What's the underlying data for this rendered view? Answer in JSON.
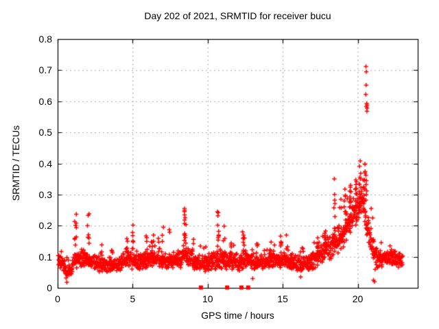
{
  "figure": {
    "title": "Day 202 of 2021, SRMTID for receiver bucu",
    "xlabel": "GPS time / hours",
    "ylabel": "SRMTID / TECUs",
    "background_color": "#ffffff",
    "marker_color": "#ff0000",
    "border_color": "#000000",
    "grid_color": "#a6a6a6",
    "text_color": "#000000"
  },
  "chart_data": {
    "type": "scatter",
    "title": "Day 202 of 2021, SRMTID for receiver bucu",
    "xlabel": "GPS time / hours",
    "ylabel": "SRMTID / TECUs",
    "xlim": [
      0,
      24
    ],
    "ylim": [
      0,
      0.8
    ],
    "xticks": [
      0,
      5,
      10,
      15,
      20
    ],
    "yticks": [
      0,
      0.1,
      0.2,
      0.3,
      0.4,
      0.5,
      0.6,
      0.7,
      0.8
    ],
    "grid": true,
    "legend": "none",
    "marker": "plus",
    "marker_color": "#ff0000",
    "seed": 20212021,
    "band_points_n": 1600,
    "band_t_range": [
      0.05,
      23.0
    ],
    "band_profile": [
      [
        0.0,
        0.085,
        0.03
      ],
      [
        0.4,
        0.075,
        0.03
      ],
      [
        0.6,
        0.045,
        0.02
      ],
      [
        0.9,
        0.065,
        0.025
      ],
      [
        1.2,
        0.09,
        0.03
      ],
      [
        1.6,
        0.1,
        0.035
      ],
      [
        2.0,
        0.09,
        0.03
      ],
      [
        2.5,
        0.08,
        0.028
      ],
      [
        3.2,
        0.072,
        0.025
      ],
      [
        4.0,
        0.075,
        0.028
      ],
      [
        4.6,
        0.09,
        0.035
      ],
      [
        5.0,
        0.095,
        0.035
      ],
      [
        5.5,
        0.085,
        0.03
      ],
      [
        6.2,
        0.095,
        0.035
      ],
      [
        7.0,
        0.09,
        0.033
      ],
      [
        7.6,
        0.085,
        0.03
      ],
      [
        8.2,
        0.09,
        0.032
      ],
      [
        8.6,
        0.1,
        0.04
      ],
      [
        9.2,
        0.08,
        0.03
      ],
      [
        9.8,
        0.078,
        0.028
      ],
      [
        10.4,
        0.085,
        0.032
      ],
      [
        10.9,
        0.095,
        0.035
      ],
      [
        11.5,
        0.088,
        0.032
      ],
      [
        12.1,
        0.082,
        0.03
      ],
      [
        12.6,
        0.09,
        0.033
      ],
      [
        13.2,
        0.08,
        0.03
      ],
      [
        14.0,
        0.088,
        0.032
      ],
      [
        14.8,
        0.09,
        0.032
      ],
      [
        15.5,
        0.082,
        0.03
      ],
      [
        16.2,
        0.075,
        0.028
      ],
      [
        16.8,
        0.082,
        0.03
      ],
      [
        17.4,
        0.1,
        0.04
      ],
      [
        18.0,
        0.13,
        0.05
      ],
      [
        18.6,
        0.155,
        0.055
      ],
      [
        19.1,
        0.18,
        0.06
      ],
      [
        19.6,
        0.23,
        0.06
      ],
      [
        20.0,
        0.26,
        0.06
      ],
      [
        20.35,
        0.3,
        0.07
      ],
      [
        20.65,
        0.2,
        0.06
      ],
      [
        21.0,
        0.13,
        0.05
      ],
      [
        21.2,
        0.09,
        0.05
      ],
      [
        21.4,
        0.095,
        0.04
      ],
      [
        21.9,
        0.1,
        0.035
      ],
      [
        22.4,
        0.095,
        0.03
      ],
      [
        23.0,
        0.088,
        0.028
      ]
    ],
    "spike_clusters": [
      [
        1.19,
        9,
        0.13,
        0.252
      ],
      [
        2.05,
        7,
        0.12,
        0.246
      ],
      [
        2.9,
        4,
        0.1,
        0.142
      ],
      [
        3.6,
        3,
        0.1,
        0.13
      ],
      [
        4.6,
        5,
        0.11,
        0.168
      ],
      [
        5.0,
        6,
        0.12,
        0.215
      ],
      [
        5.9,
        5,
        0.11,
        0.18
      ],
      [
        6.35,
        4,
        0.12,
        0.175
      ],
      [
        7.0,
        3,
        0.13,
        0.22
      ],
      [
        7.45,
        2,
        0.14,
        0.22
      ],
      [
        8.5,
        14,
        0.13,
        0.258
      ],
      [
        9.05,
        4,
        0.11,
        0.16
      ],
      [
        10.7,
        10,
        0.12,
        0.246
      ],
      [
        11.1,
        3,
        0.13,
        0.21
      ],
      [
        11.55,
        5,
        0.1,
        0.17
      ],
      [
        12.4,
        7,
        0.1,
        0.178
      ],
      [
        13.3,
        4,
        0.1,
        0.15
      ],
      [
        14.2,
        5,
        0.1,
        0.165
      ],
      [
        14.85,
        4,
        0.11,
        0.17
      ],
      [
        15.3,
        3,
        0.12,
        0.19
      ],
      [
        16.35,
        3,
        0.09,
        0.13
      ],
      [
        17.3,
        5,
        0.11,
        0.18
      ],
      [
        17.85,
        6,
        0.12,
        0.21
      ],
      [
        18.45,
        10,
        0.17,
        0.352
      ],
      [
        18.85,
        6,
        0.14,
        0.3
      ],
      [
        19.15,
        8,
        0.17,
        0.33
      ],
      [
        19.5,
        12,
        0.19,
        0.35
      ],
      [
        19.9,
        10,
        0.23,
        0.375
      ],
      [
        20.15,
        12,
        0.26,
        0.42
      ],
      [
        20.45,
        8,
        0.28,
        0.42
      ]
    ],
    "outlier_points": [
      [
        20.55,
        0.712
      ],
      [
        20.57,
        0.695
      ],
      [
        20.56,
        0.652
      ],
      [
        20.54,
        0.622
      ],
      [
        20.6,
        0.593
      ],
      [
        20.62,
        0.588
      ],
      [
        20.58,
        0.583
      ],
      [
        20.63,
        0.578
      ],
      [
        20.61,
        0.568
      ],
      [
        20.55,
        0.362
      ],
      [
        20.58,
        0.345
      ],
      [
        20.56,
        0.332
      ],
      [
        20.6,
        0.312
      ],
      [
        20.57,
        0.3
      ],
      [
        20.55,
        0.282
      ],
      [
        20.9,
        0.255
      ],
      [
        21.0,
        0.225
      ],
      [
        21.05,
        0.025
      ],
      [
        21.12,
        0.02
      ],
      [
        0.62,
        0.018
      ],
      [
        16.2,
        0.035
      ],
      [
        13.0,
        0.03
      ]
    ],
    "zero_square_markers_x": [
      9.55,
      11.3,
      12.25,
      12.7
    ],
    "description": "Dense red plus-marker scatter of SRMTID vs GPS time; baseline band ~0.05-0.15 TECUs all day, spikes near hours 1.2, 2, 8.5, 10.7, broad enhancement hours 18-21 peaking 0.71 at ~20.5 h; four red filled squares on the x-axis near hours 9.5, 11.3, 12.3, 12.7."
  }
}
